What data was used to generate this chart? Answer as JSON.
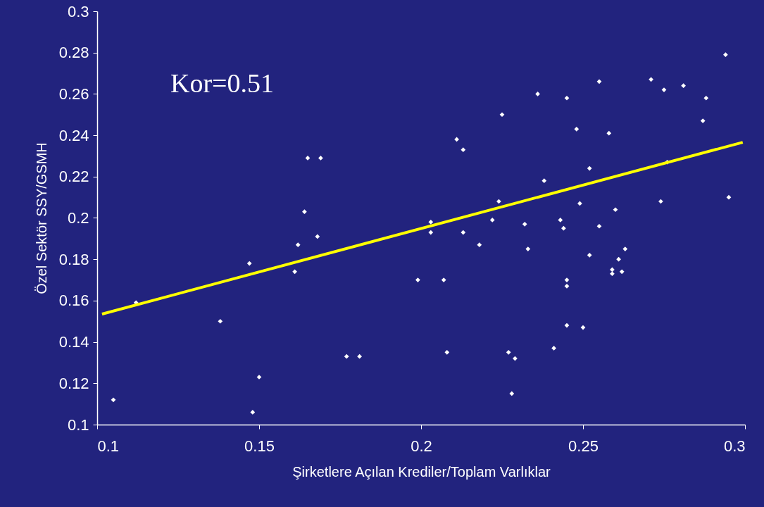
{
  "chart_data": {
    "type": "scatter",
    "xlabel": "Şirketlere Açılan Krediler/Toplam Varlıklar",
    "ylabel": "Özel Sektör SSY/GSMH",
    "annotations": [
      "Kor=0.51"
    ],
    "grid": false,
    "xlim": [
      0.1,
      0.3
    ],
    "xticks": [
      0.1,
      0.15,
      0.2,
      0.25,
      0.3
    ],
    "ylim": [
      0.1,
      0.3
    ],
    "yticks": [
      0.1,
      0.12,
      0.14,
      0.16,
      0.18,
      0.2,
      0.22,
      0.24,
      0.26,
      0.28,
      0.3
    ],
    "series": [
      {
        "color": "#ffffff",
        "marker": "diamond",
        "x": [
          0.105,
          0.112,
          0.138,
          0.147,
          0.148,
          0.15,
          0.161,
          0.162,
          0.164,
          0.165,
          0.168,
          0.169,
          0.177,
          0.181,
          0.199,
          0.203,
          0.203,
          0.207,
          0.208,
          0.211,
          0.213,
          0.213,
          0.218,
          0.222,
          0.224,
          0.225,
          0.227,
          0.228,
          0.229,
          0.232,
          0.233,
          0.236,
          0.238,
          0.241,
          0.243,
          0.244,
          0.245,
          0.245,
          0.245,
          0.245,
          0.248,
          0.249,
          0.25,
          0.252,
          0.252,
          0.255,
          0.255,
          0.258,
          0.259,
          0.259,
          0.26,
          0.261,
          0.262,
          0.263,
          0.271,
          0.274,
          0.275,
          0.276,
          0.281,
          0.287,
          0.288,
          0.294,
          0.295
        ],
        "values": [
          0.112,
          0.159,
          0.15,
          0.178,
          0.106,
          0.123,
          0.174,
          0.187,
          0.203,
          0.229,
          0.191,
          0.229,
          0.133,
          0.133,
          0.17,
          0.193,
          0.198,
          0.17,
          0.135,
          0.238,
          0.233,
          0.193,
          0.187,
          0.199,
          0.208,
          0.25,
          0.135,
          0.115,
          0.132,
          0.197,
          0.185,
          0.26,
          0.218,
          0.137,
          0.199,
          0.195,
          0.167,
          0.17,
          0.258,
          0.148,
          0.243,
          0.207,
          0.147,
          0.224,
          0.182,
          0.266,
          0.196,
          0.241,
          0.175,
          0.173,
          0.204,
          0.18,
          0.174,
          0.185,
          0.267,
          0.208,
          0.262,
          0.227,
          0.264,
          0.247,
          0.258,
          0.279,
          0.21
        ]
      },
      {
        "type": "line",
        "marker": "none",
        "color": "#ffff00",
        "x": [
          0.1015,
          0.2993
        ],
        "values": [
          0.1535,
          0.2366
        ]
      }
    ]
  }
}
